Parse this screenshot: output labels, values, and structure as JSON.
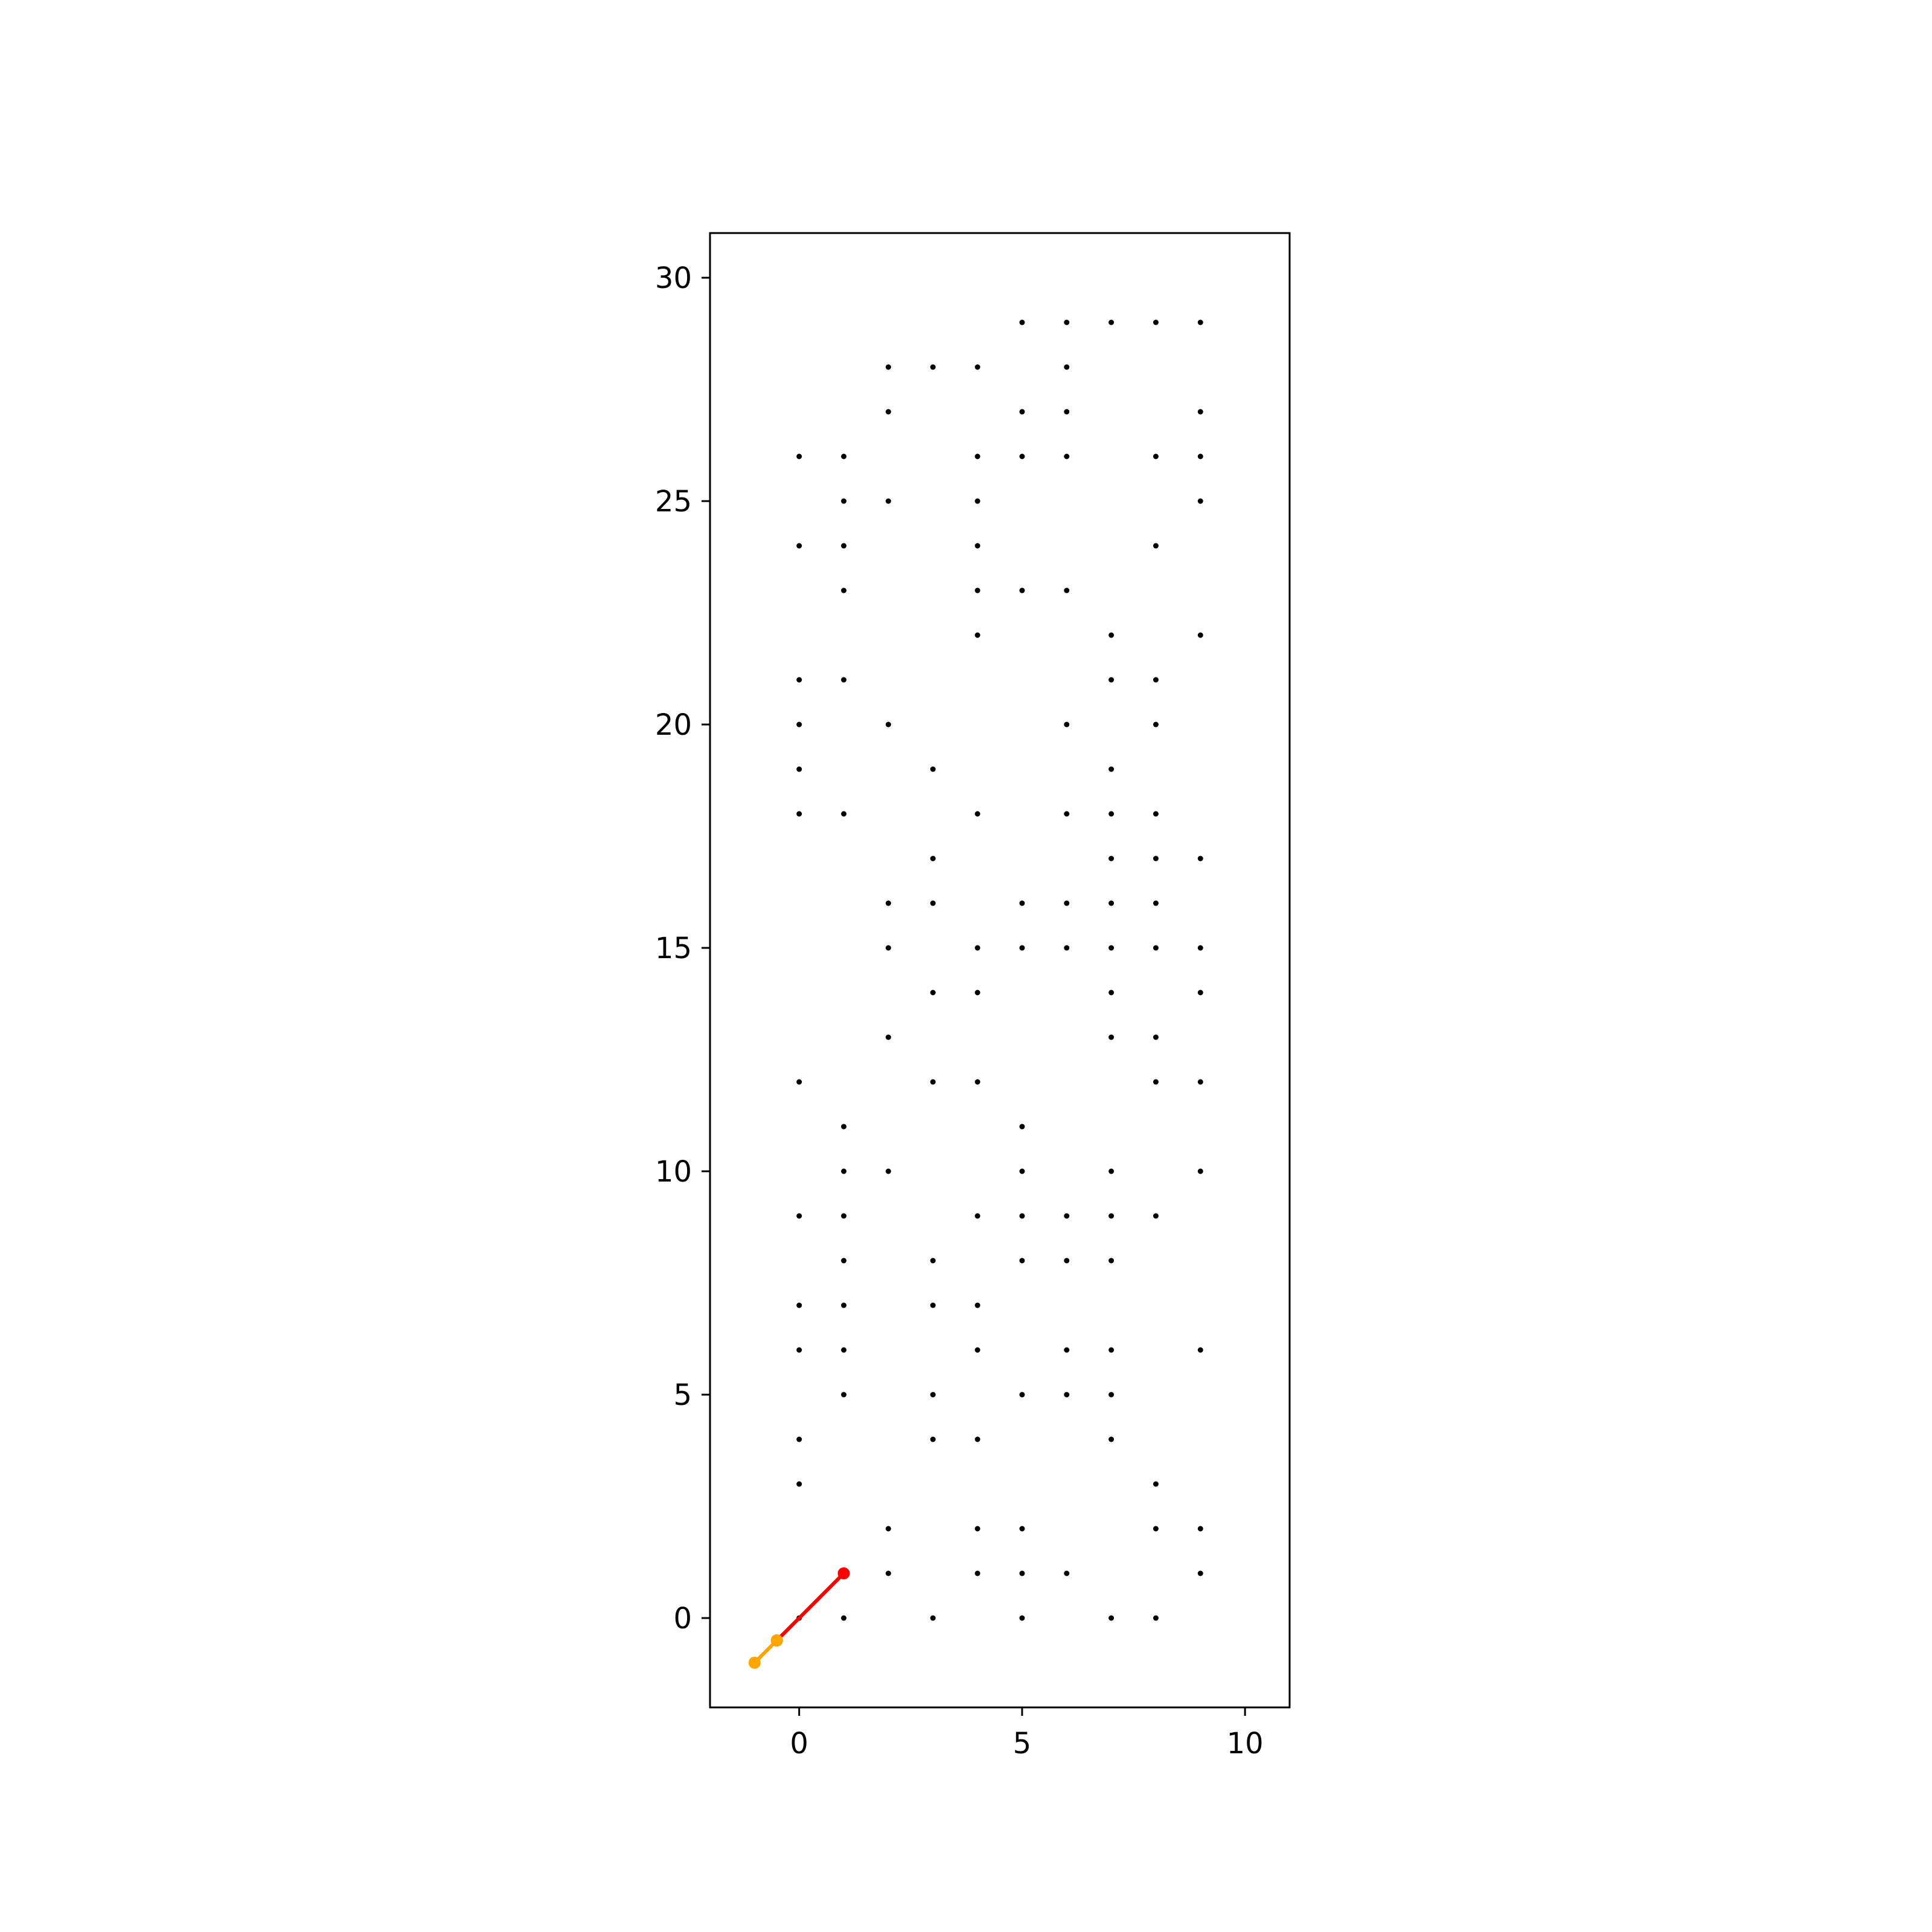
{
  "chart_data": {
    "type": "scatter",
    "title": "",
    "xlabel": "",
    "ylabel": "",
    "xlim": [
      -2,
      11
    ],
    "ylim": [
      -2,
      31
    ],
    "xticks": [
      0,
      5,
      10
    ],
    "yticks": [
      0,
      5,
      10,
      15,
      20,
      25,
      30
    ],
    "grid": false,
    "legend": "none",
    "series": [
      {
        "kind": "points",
        "color": "#000000",
        "points": [
          [
            5,
            29
          ],
          [
            6,
            29
          ],
          [
            7,
            29
          ],
          [
            8,
            29
          ],
          [
            9,
            29
          ],
          [
            2,
            28
          ],
          [
            3,
            28
          ],
          [
            4,
            28
          ],
          [
            6,
            28
          ],
          [
            2,
            27
          ],
          [
            5,
            27
          ],
          [
            6,
            27
          ],
          [
            9,
            27
          ],
          [
            0,
            26
          ],
          [
            1,
            26
          ],
          [
            4,
            26
          ],
          [
            5,
            26
          ],
          [
            6,
            26
          ],
          [
            8,
            26
          ],
          [
            9,
            26
          ],
          [
            1,
            25
          ],
          [
            2,
            25
          ],
          [
            4,
            25
          ],
          [
            9,
            25
          ],
          [
            0,
            24
          ],
          [
            1,
            24
          ],
          [
            4,
            24
          ],
          [
            8,
            24
          ],
          [
            1,
            23
          ],
          [
            4,
            23
          ],
          [
            5,
            23
          ],
          [
            6,
            23
          ],
          [
            4,
            22
          ],
          [
            7,
            22
          ],
          [
            9,
            22
          ],
          [
            0,
            21
          ],
          [
            1,
            21
          ],
          [
            7,
            21
          ],
          [
            8,
            21
          ],
          [
            0,
            20
          ],
          [
            2,
            20
          ],
          [
            6,
            20
          ],
          [
            8,
            20
          ],
          [
            0,
            19
          ],
          [
            3,
            19
          ],
          [
            7,
            19
          ],
          [
            0,
            18
          ],
          [
            1,
            18
          ],
          [
            4,
            18
          ],
          [
            6,
            18
          ],
          [
            7,
            18
          ],
          [
            8,
            18
          ],
          [
            3,
            17
          ],
          [
            7,
            17
          ],
          [
            8,
            17
          ],
          [
            9,
            17
          ],
          [
            2,
            16
          ],
          [
            3,
            16
          ],
          [
            5,
            16
          ],
          [
            6,
            16
          ],
          [
            7,
            16
          ],
          [
            8,
            16
          ],
          [
            2,
            15
          ],
          [
            4,
            15
          ],
          [
            5,
            15
          ],
          [
            6,
            15
          ],
          [
            7,
            15
          ],
          [
            8,
            15
          ],
          [
            9,
            15
          ],
          [
            3,
            14
          ],
          [
            4,
            14
          ],
          [
            7,
            14
          ],
          [
            9,
            14
          ],
          [
            2,
            13
          ],
          [
            7,
            13
          ],
          [
            8,
            13
          ],
          [
            0,
            12
          ],
          [
            3,
            12
          ],
          [
            4,
            12
          ],
          [
            8,
            12
          ],
          [
            9,
            12
          ],
          [
            1,
            11
          ],
          [
            5,
            11
          ],
          [
            1,
            10
          ],
          [
            2,
            10
          ],
          [
            5,
            10
          ],
          [
            7,
            10
          ],
          [
            9,
            10
          ],
          [
            0,
            9
          ],
          [
            1,
            9
          ],
          [
            4,
            9
          ],
          [
            5,
            9
          ],
          [
            6,
            9
          ],
          [
            7,
            9
          ],
          [
            8,
            9
          ],
          [
            1,
            8
          ],
          [
            3,
            8
          ],
          [
            5,
            8
          ],
          [
            6,
            8
          ],
          [
            7,
            8
          ],
          [
            0,
            7
          ],
          [
            1,
            7
          ],
          [
            3,
            7
          ],
          [
            4,
            7
          ],
          [
            0,
            6
          ],
          [
            1,
            6
          ],
          [
            4,
            6
          ],
          [
            6,
            6
          ],
          [
            7,
            6
          ],
          [
            9,
            6
          ],
          [
            1,
            5
          ],
          [
            3,
            5
          ],
          [
            5,
            5
          ],
          [
            6,
            5
          ],
          [
            7,
            5
          ],
          [
            0,
            4
          ],
          [
            3,
            4
          ],
          [
            4,
            4
          ],
          [
            7,
            4
          ],
          [
            0,
            3
          ],
          [
            8,
            3
          ],
          [
            2,
            2
          ],
          [
            4,
            2
          ],
          [
            5,
            2
          ],
          [
            8,
            2
          ],
          [
            9,
            2
          ],
          [
            2,
            1
          ],
          [
            4,
            1
          ],
          [
            5,
            1
          ],
          [
            6,
            1
          ],
          [
            9,
            1
          ],
          [
            0,
            0
          ],
          [
            1,
            0
          ],
          [
            3,
            0
          ],
          [
            5,
            0
          ],
          [
            7,
            0
          ],
          [
            8,
            0
          ]
        ]
      },
      {
        "kind": "line",
        "color": "#ff0000",
        "points": [
          [
            1,
            1
          ],
          [
            -0.5,
            -0.5
          ]
        ]
      },
      {
        "kind": "line",
        "color": "#ffa500",
        "points": [
          [
            -0.5,
            -0.5
          ],
          [
            -1,
            -1
          ]
        ]
      }
    ]
  }
}
